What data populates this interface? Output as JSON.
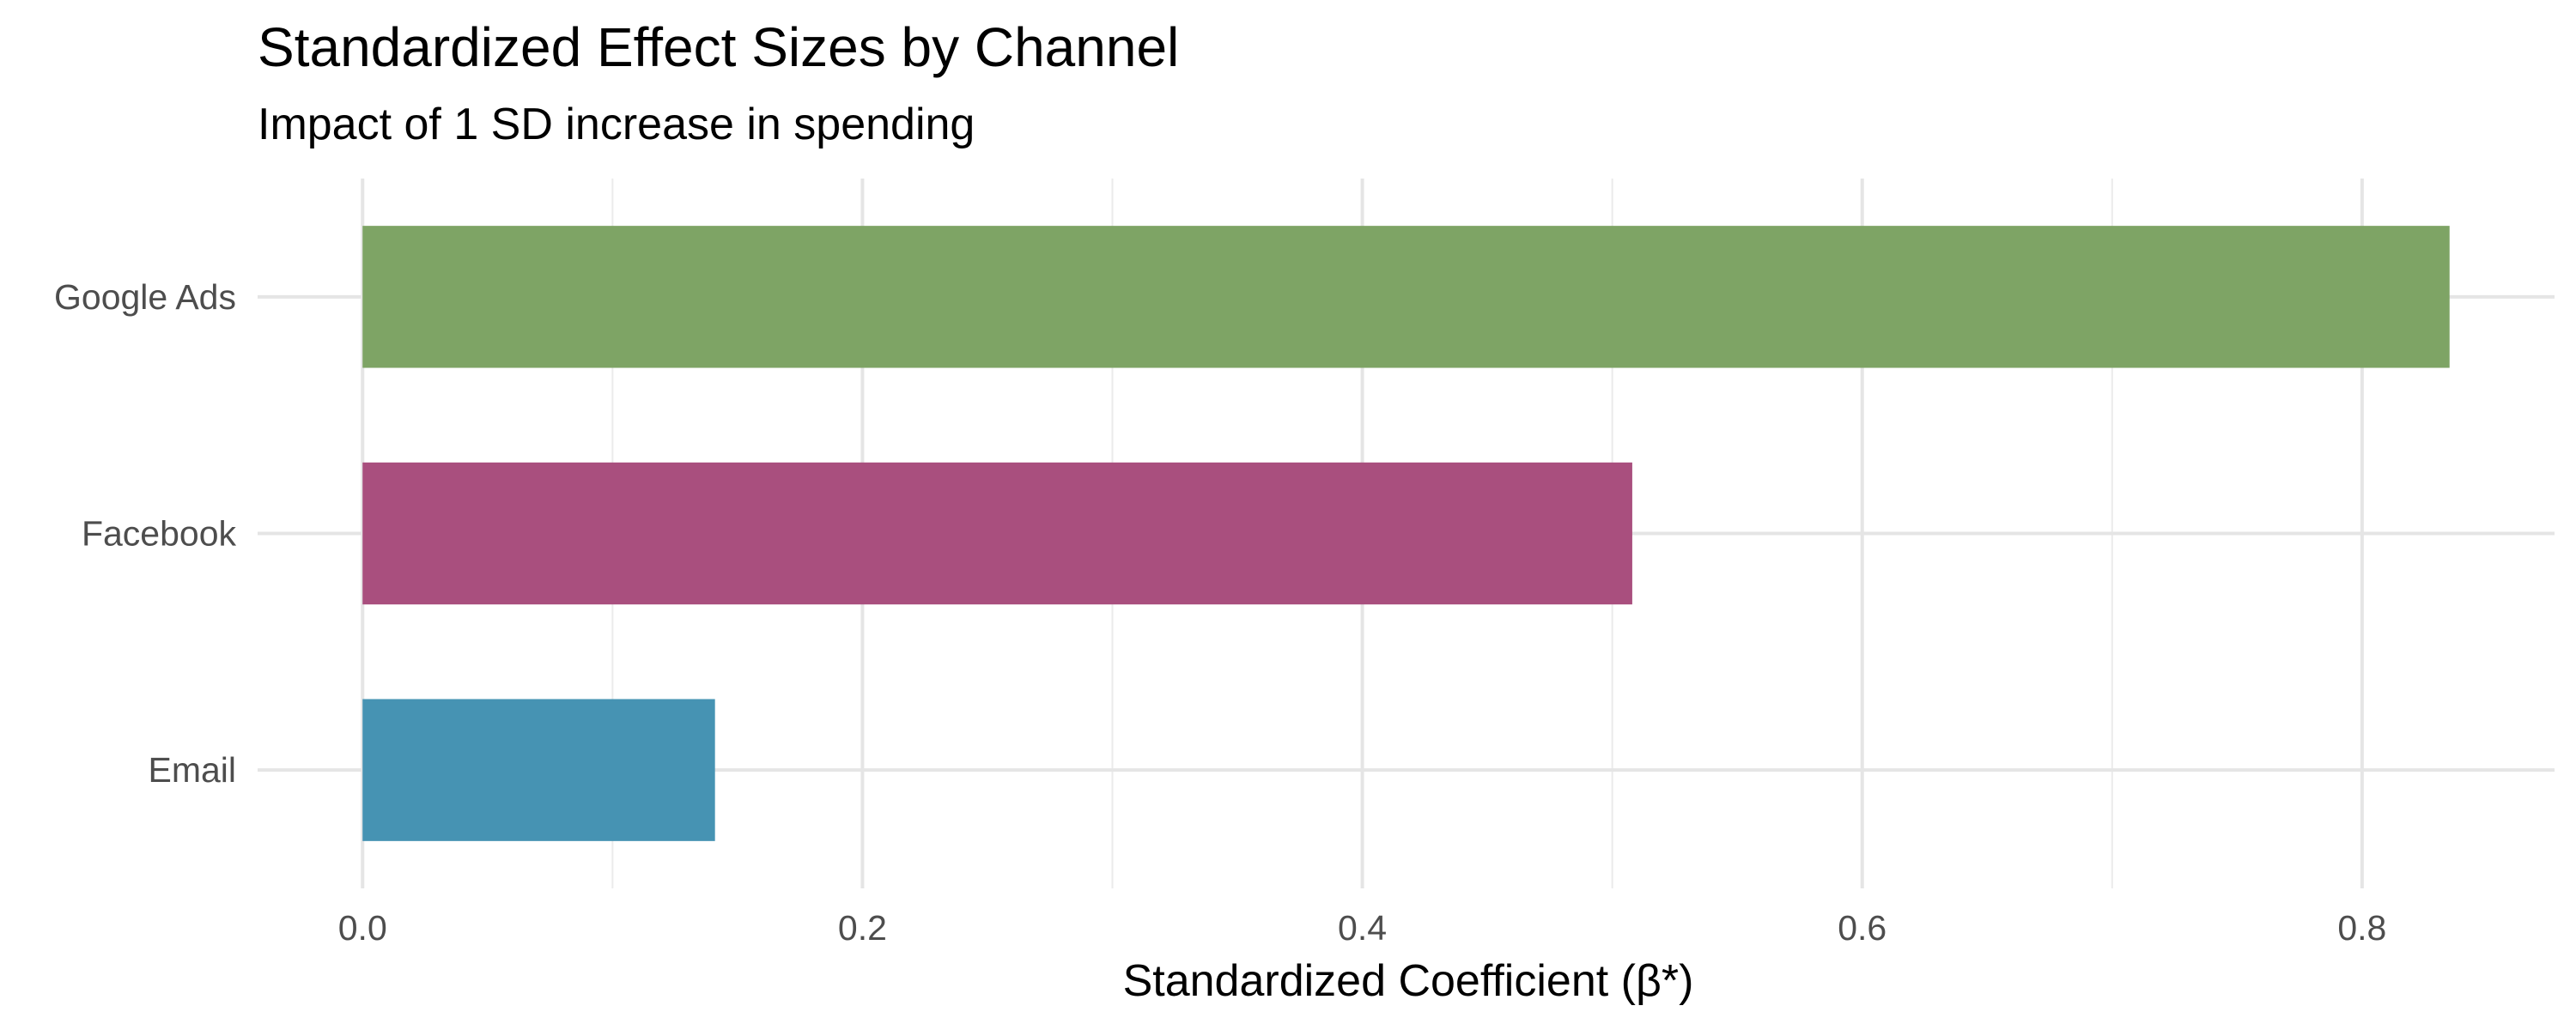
{
  "chart_data": {
    "type": "bar",
    "orientation": "horizontal",
    "title": "Standardized Effect Sizes by Channel",
    "subtitle": "Impact of 1 SD increase in spending",
    "xlabel": "Standardized Coefficient (β*)",
    "ylabel": "",
    "categories": [
      "Google Ads",
      "Facebook",
      "Email"
    ],
    "values": [
      0.835,
      0.508,
      0.141
    ],
    "colors": [
      "#7ea465",
      "#a94f7e",
      "#4693b3"
    ],
    "xlim": [
      -0.042,
      0.877
    ],
    "x_ticks": [
      0.0,
      0.2,
      0.4,
      0.6,
      0.8
    ],
    "x_tick_labels": [
      "0.0",
      "0.2",
      "0.4",
      "0.6",
      "0.8"
    ],
    "grid": true,
    "legend": "none"
  }
}
